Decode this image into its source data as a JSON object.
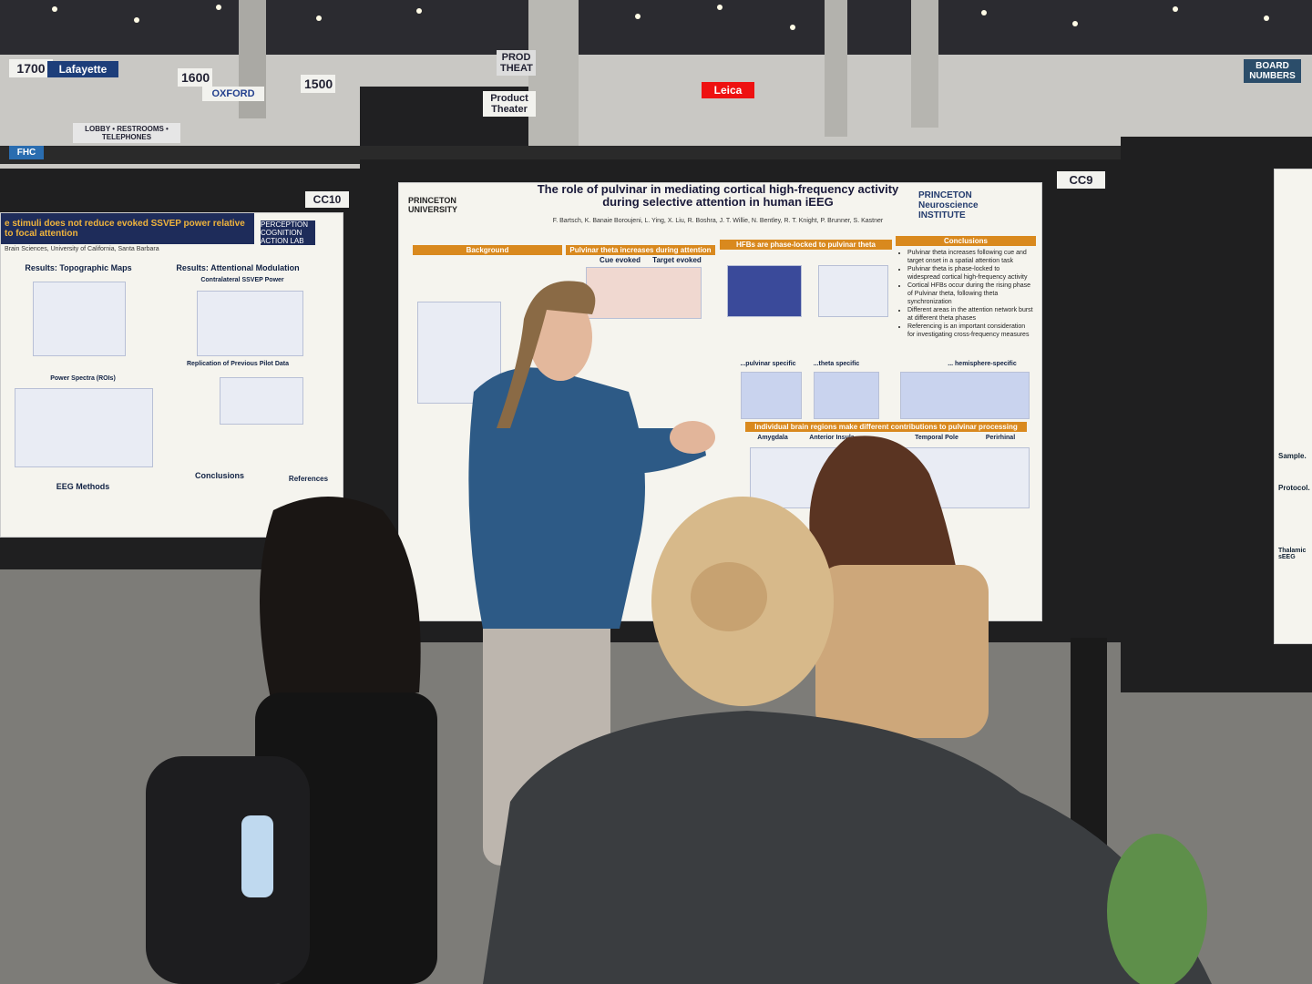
{
  "signs": {
    "booths": [
      "1700",
      "1600",
      "1500"
    ],
    "lafayette": "Lafayette",
    "oxford": "OXFORD",
    "theater": "PROD THEAT",
    "product_theater": "Product Theater",
    "leica": "Leica",
    "board_numbers": "BOARD NUMBERS",
    "lobby": "LOBBY • RESTROOMS • TELEPHONES",
    "fhc": "FHC"
  },
  "poster_left": {
    "board": "CC10",
    "title": "e stimuli does not reduce evoked SSVEP power relative to focal attention",
    "lab": "PERCEPTION COGNITION ACTION LAB",
    "affiliation": "Brain Sciences, University of California, Santa Barbara",
    "sections": [
      "Results: Topographic Maps",
      "Results: Attentional Modulation",
      "Contralateral SSVEP Power",
      "Replication of Previous Pilot Data",
      "Power Spectra (ROIs)",
      "EEG Methods",
      "Conclusions",
      "References"
    ]
  },
  "poster_center": {
    "board": "CC9",
    "university": "PRINCETON UNIVERSITY",
    "title": "The role of pulvinar in mediating cortical high-frequency activity during selective attention in human iEEG",
    "authors": "F. Bartsch, K. Banaie Boroujeni, L. Ying, X. Liu, R. Boshra, J. T. Willie, N. Bentley, R. T. Knight, P. Brunner, S. Kastner",
    "institute": "PRINCETON Neuroscience INSTITUTE",
    "sections": [
      "Background",
      "Pulvinar theta increases during attention",
      "HFBs are phase-locked to pulvinar theta",
      "Conclusions",
      "Individual brain regions make different contributions to pulvinar processing"
    ],
    "panel_labels": [
      "Cue evoked",
      "Target evoked",
      "...pulvinar specific",
      "...theta specific",
      "... hemisphere-specific",
      "Amygdala",
      "Anterior Insula",
      "Temporal Pole",
      "Perirhinal"
    ],
    "conclusions": [
      "Pulvinar theta increases following cue and target onset in a spatial attention task",
      "Pulvinar theta is phase-locked to widespread cortical high-frequency activity",
      "Cortical HFBs occur during the rising phase of Pulvinar theta, following theta synchronization",
      "Different areas in the attention network burst at different theta phases",
      "Referencing is an important consideration for investigating cross-frequency measures"
    ]
  },
  "poster_right": {
    "texts": [
      "Sample.",
      "Protocol.",
      "Thalamic sEEG"
    ]
  }
}
